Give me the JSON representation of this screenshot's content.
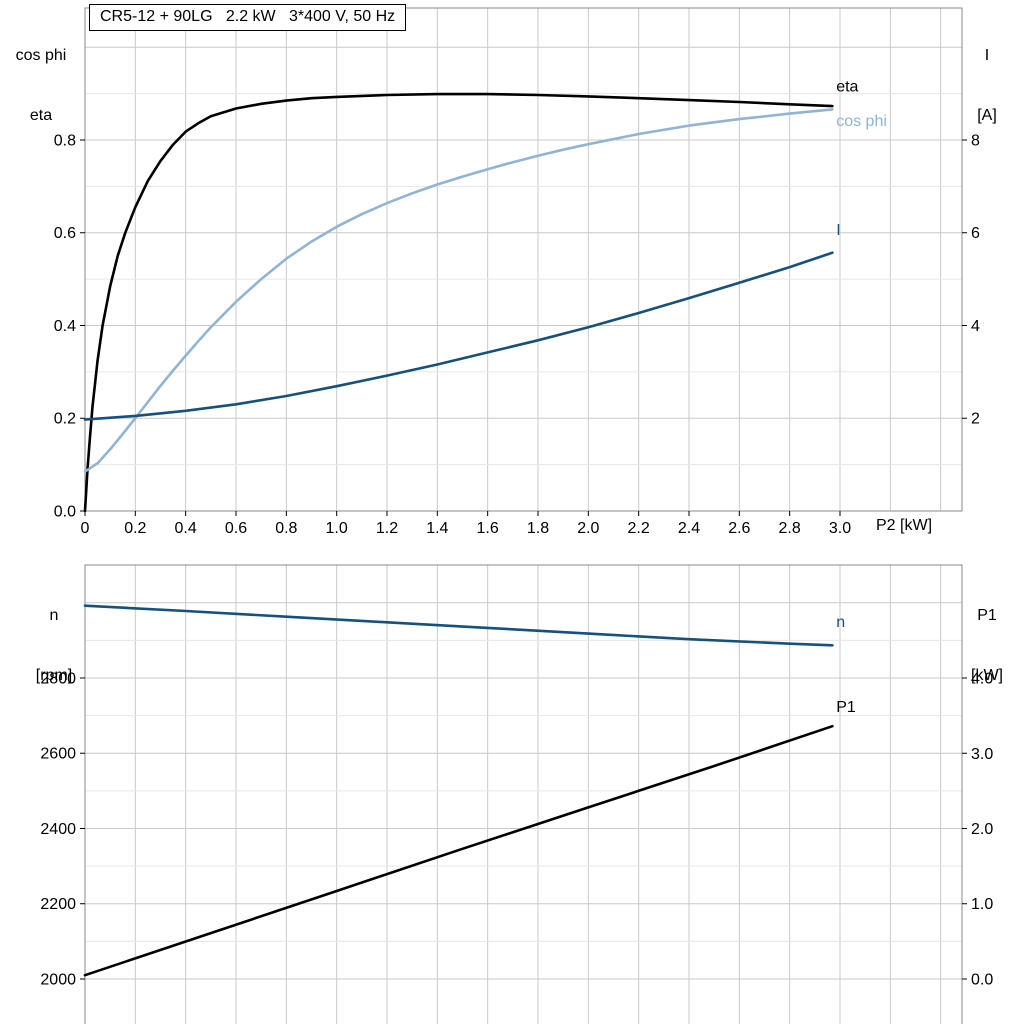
{
  "title": "CR5-12 + 90LG   2.2 kW   3*400 V, 50 Hz",
  "colors": {
    "black": "#000000",
    "light_blue": "#8fb4d6",
    "dark_blue": "#16507c",
    "grid_major": "#c9c9c9",
    "grid_minor": "#e6e6e6",
    "frame": "#8a8a8a"
  },
  "axis_labels": {
    "top_left_1": "cos phi",
    "top_left_2": "eta",
    "top_right_1": "I",
    "top_right_2": "[A]",
    "x_label": "P2 [kW]",
    "bottom_left_1": "n",
    "bottom_left_2": "[rpm]",
    "bottom_right_1": "P1",
    "bottom_right_2": "[kW]"
  },
  "chart_data": [
    {
      "id": "motor-upper",
      "type": "line",
      "title": "CR5-12 + 90LG   2.2 kW   3*400 V, 50 Hz",
      "xlabel": "P2 [kW]",
      "xlim": [
        0,
        3.4848
      ],
      "x_ticks": [
        {
          "v": 0,
          "label": "0"
        },
        {
          "v": 0.2,
          "label": "0.2"
        },
        {
          "v": 0.4,
          "label": "0.4"
        },
        {
          "v": 0.6,
          "label": "0.6"
        },
        {
          "v": 0.8,
          "label": "0.8"
        },
        {
          "v": 1.0,
          "label": "1.0"
        },
        {
          "v": 1.2,
          "label": "1.2"
        },
        {
          "v": 1.4,
          "label": "1.4"
        },
        {
          "v": 1.6,
          "label": "1.6"
        },
        {
          "v": 1.8,
          "label": "1.8"
        },
        {
          "v": 2.0,
          "label": "2.0"
        },
        {
          "v": 2.2,
          "label": "2.2"
        },
        {
          "v": 2.4,
          "label": "2.4"
        },
        {
          "v": 2.6,
          "label": "2.6"
        },
        {
          "v": 2.8,
          "label": "2.8"
        },
        {
          "v": 3.0,
          "label": "3.0"
        }
      ],
      "left_axis": {
        "label": "cos phi / eta",
        "lim": [
          0,
          1.0846
        ],
        "ticks": [
          {
            "v": 0.0,
            "label": "0.0"
          },
          {
            "v": 0.2,
            "label": "0.2"
          },
          {
            "v": 0.4,
            "label": "0.4"
          },
          {
            "v": 0.6,
            "label": "0.6"
          },
          {
            "v": 0.8,
            "label": "0.8"
          }
        ]
      },
      "right_axis": {
        "label": "I [A]",
        "lim": [
          0,
          10.846
        ],
        "ticks": [
          {
            "v": 2,
            "label": "2"
          },
          {
            "v": 4,
            "label": "4"
          },
          {
            "v": 6,
            "label": "6"
          },
          {
            "v": 8,
            "label": "8"
          }
        ]
      },
      "grid": {
        "x_step": 0.2,
        "y_minor": 0.1,
        "y_major": 0.2,
        "y_from": 0.1,
        "y_to": 1.08
      },
      "series": [
        {
          "name": "eta",
          "label": "eta",
          "axis": "left",
          "color": "black",
          "label_at": [
            2.985,
            0.905
          ],
          "points": [
            [
              0,
              0
            ],
            [
              0.01,
              0.09
            ],
            [
              0.02,
              0.16
            ],
            [
              0.03,
              0.225
            ],
            [
              0.05,
              0.325
            ],
            [
              0.07,
              0.4
            ],
            [
              0.1,
              0.485
            ],
            [
              0.13,
              0.55
            ],
            [
              0.16,
              0.6
            ],
            [
              0.2,
              0.655
            ],
            [
              0.25,
              0.712
            ],
            [
              0.3,
              0.755
            ],
            [
              0.35,
              0.79
            ],
            [
              0.4,
              0.818
            ],
            [
              0.45,
              0.836
            ],
            [
              0.5,
              0.851
            ],
            [
              0.6,
              0.868
            ],
            [
              0.7,
              0.878
            ],
            [
              0.8,
              0.885
            ],
            [
              0.9,
              0.89
            ],
            [
              1.0,
              0.893
            ],
            [
              1.2,
              0.897
            ],
            [
              1.4,
              0.899
            ],
            [
              1.6,
              0.899
            ],
            [
              1.8,
              0.897
            ],
            [
              2.0,
              0.894
            ],
            [
              2.2,
              0.89
            ],
            [
              2.4,
              0.886
            ],
            [
              2.6,
              0.882
            ],
            [
              2.8,
              0.877
            ],
            [
              2.97,
              0.873
            ]
          ]
        },
        {
          "name": "cos-phi",
          "label": "cos phi",
          "axis": "left",
          "color": "light_blue",
          "label_at": [
            2.985,
            0.83
          ],
          "points": [
            [
              0,
              0.085
            ],
            [
              0.05,
              0.103
            ],
            [
              0.1,
              0.133
            ],
            [
              0.15,
              0.166
            ],
            [
              0.2,
              0.2
            ],
            [
              0.25,
              0.235
            ],
            [
              0.3,
              0.27
            ],
            [
              0.35,
              0.303
            ],
            [
              0.4,
              0.335
            ],
            [
              0.45,
              0.366
            ],
            [
              0.5,
              0.396
            ],
            [
              0.6,
              0.451
            ],
            [
              0.7,
              0.5
            ],
            [
              0.8,
              0.544
            ],
            [
              0.9,
              0.581
            ],
            [
              1.0,
              0.613
            ],
            [
              1.1,
              0.64
            ],
            [
              1.2,
              0.664
            ],
            [
              1.3,
              0.685
            ],
            [
              1.4,
              0.704
            ],
            [
              1.5,
              0.721
            ],
            [
              1.6,
              0.737
            ],
            [
              1.7,
              0.752
            ],
            [
              1.8,
              0.766
            ],
            [
              1.9,
              0.779
            ],
            [
              2.0,
              0.791
            ],
            [
              2.2,
              0.813
            ],
            [
              2.4,
              0.831
            ],
            [
              2.6,
              0.845
            ],
            [
              2.8,
              0.857
            ],
            [
              2.97,
              0.866
            ]
          ]
        },
        {
          "name": "current",
          "label": "I",
          "axis": "right",
          "color": "dark_blue",
          "label_at": [
            2.985,
            5.95
          ],
          "points": [
            [
              0,
              1.97
            ],
            [
              0.2,
              2.05
            ],
            [
              0.4,
              2.16
            ],
            [
              0.6,
              2.3
            ],
            [
              0.8,
              2.48
            ],
            [
              1.0,
              2.69
            ],
            [
              1.2,
              2.92
            ],
            [
              1.4,
              3.16
            ],
            [
              1.6,
              3.42
            ],
            [
              1.8,
              3.68
            ],
            [
              2.0,
              3.96
            ],
            [
              2.2,
              4.27
            ],
            [
              2.4,
              4.59
            ],
            [
              2.6,
              4.92
            ],
            [
              2.8,
              5.26
            ],
            [
              2.97,
              5.57
            ]
          ]
        }
      ]
    },
    {
      "id": "motor-lower",
      "type": "line",
      "title": "",
      "xlabel": "",
      "xlim": [
        0,
        3.4848
      ],
      "x_ticks": [],
      "left_axis": {
        "label": "n [rpm]",
        "lim": [
          1864.4,
          3100.3
        ],
        "ticks": [
          {
            "v": 2000,
            "label": "2000"
          },
          {
            "v": 2200,
            "label": "2200"
          },
          {
            "v": 2400,
            "label": "2400"
          },
          {
            "v": 2600,
            "label": "2600"
          },
          {
            "v": 2800,
            "label": "2800"
          }
        ]
      },
      "right_axis": {
        "label": "P1 [kW]",
        "lim": [
          -0.678,
          5.502
        ],
        "ticks": [
          {
            "v": 0.0,
            "label": "0.0"
          },
          {
            "v": 1.0,
            "label": "1.0"
          },
          {
            "v": 2.0,
            "label": "2.0"
          },
          {
            "v": 3.0,
            "label": "3.0"
          },
          {
            "v": 4.0,
            "label": "4.0"
          }
        ]
      },
      "grid": {
        "x_step": 0.2,
        "y_minor": 100,
        "y_major": 200,
        "y_from": 2000,
        "y_to": 3050
      },
      "series": [
        {
          "name": "speed",
          "label": "n",
          "axis": "left",
          "color": "dark_blue",
          "label_at": [
            2.985,
            2935
          ],
          "points": [
            [
              0,
              2992
            ],
            [
              0.4,
              2978
            ],
            [
              0.8,
              2963
            ],
            [
              1.2,
              2948
            ],
            [
              1.6,
              2933
            ],
            [
              2.0,
              2918
            ],
            [
              2.4,
              2903
            ],
            [
              2.8,
              2891
            ],
            [
              2.97,
              2887
            ]
          ]
        },
        {
          "name": "p1",
          "label": "P1",
          "axis": "right",
          "color": "black",
          "label_at": [
            2.985,
            3.55
          ],
          "points": [
            [
              0,
              0.05
            ],
            [
              0.5,
              0.61
            ],
            [
              1.0,
              1.17
            ],
            [
              1.5,
              1.73
            ],
            [
              2.0,
              2.28
            ],
            [
              2.5,
              2.83
            ],
            [
              2.97,
              3.36
            ]
          ]
        }
      ]
    }
  ]
}
